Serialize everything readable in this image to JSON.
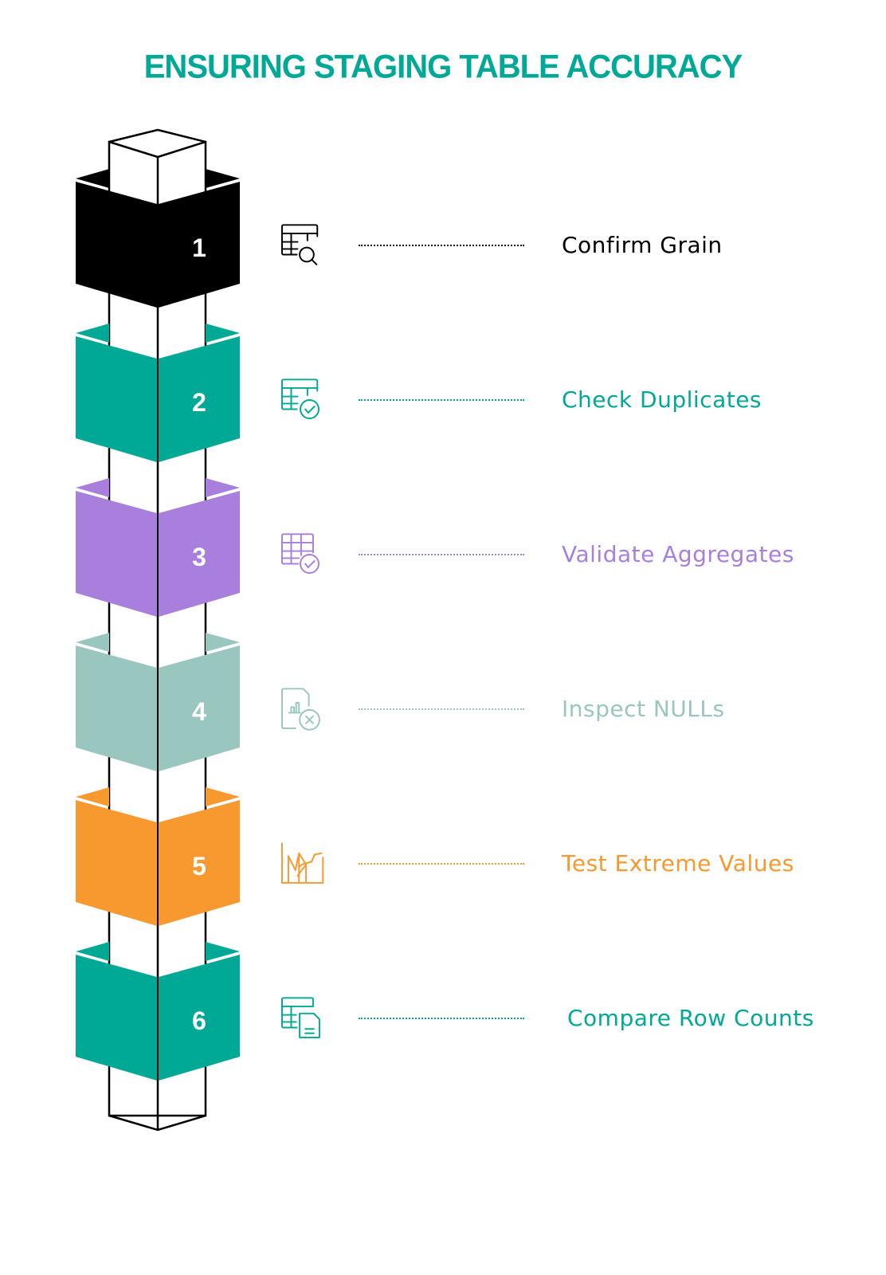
{
  "title": "ENSURING STAGING TABLE ACCURACY",
  "steps": [
    {
      "number": "1",
      "label": "Confirm Grain",
      "color": "#000000",
      "icon": "table-search-icon"
    },
    {
      "number": "2",
      "label": "Check Duplicates",
      "color": "#00a896",
      "icon": "table-check-icon"
    },
    {
      "number": "3",
      "label": "Validate Aggregates",
      "color": "#a87fdc",
      "icon": "grid-check-icon"
    },
    {
      "number": "4",
      "label": "Inspect NULLs",
      "color": "#99c7bf",
      "icon": "document-chart-x-icon"
    },
    {
      "number": "5",
      "label": "Test Extreme Values",
      "color": "#f7992e",
      "icon": "spiky-chart-icon"
    },
    {
      "number": "6",
      "label": "Compare Row Counts",
      "color": "#00a896",
      "icon": "table-document-icon"
    }
  ]
}
